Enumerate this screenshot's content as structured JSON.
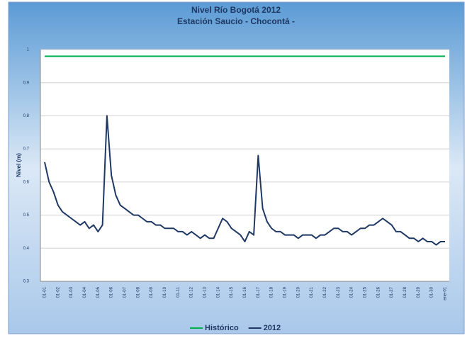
{
  "chart_data": {
    "type": "line",
    "title": "Nivel Río Bogotá  2012",
    "subtitle": "Estación Saucio - Chocontá -",
    "y_label": "Nivel (m)",
    "categories": [
      "01-01",
      null,
      null,
      "01-02",
      null,
      null,
      "01-03",
      null,
      null,
      "01-04",
      null,
      null,
      "01-05",
      null,
      null,
      "01-06",
      null,
      null,
      "01-07",
      null,
      null,
      "01-08",
      null,
      null,
      "01-09",
      null,
      null,
      "01-10",
      null,
      null,
      "01-11",
      null,
      null,
      "01-12",
      null,
      null,
      "01-13",
      null,
      null,
      "01-14",
      null,
      null,
      "01-15",
      null,
      null,
      "01-16",
      null,
      null,
      "01-17",
      null,
      null,
      "01-18",
      null,
      null,
      "01-19",
      null,
      null,
      "01-20",
      null,
      null,
      "01-21",
      null,
      null,
      "01-22",
      null,
      null,
      "01-23",
      null,
      null,
      "01-24",
      null,
      null,
      "01-25",
      null,
      null,
      "01-26",
      null,
      null,
      "01-27",
      null,
      null,
      "01-28",
      null,
      null,
      "01-29",
      null,
      null,
      "01-30",
      null,
      null,
      "ene-01"
    ],
    "series": [
      {
        "name": "Histórico",
        "color": "#00b050",
        "values": [
          0.98,
          0.98,
          0.98,
          0.98,
          0.98,
          0.98,
          0.98,
          0.98,
          0.98,
          0.98,
          0.98,
          0.98,
          0.98,
          0.98,
          0.98,
          0.98,
          0.98,
          0.98,
          0.98,
          0.98,
          0.98,
          0.98,
          0.98,
          0.98,
          0.98,
          0.98,
          0.98,
          0.98,
          0.98,
          0.98,
          0.98,
          0.98,
          0.98,
          0.98,
          0.98,
          0.98,
          0.98,
          0.98,
          0.98,
          0.98,
          0.98,
          0.98,
          0.98,
          0.98,
          0.98,
          0.98,
          0.98,
          0.98,
          0.98,
          0.98,
          0.98,
          0.98,
          0.98,
          0.98,
          0.98,
          0.98,
          0.98,
          0.98,
          0.98,
          0.98,
          0.98,
          0.98,
          0.98,
          0.98,
          0.98,
          0.98,
          0.98,
          0.98,
          0.98,
          0.98,
          0.98,
          0.98,
          0.98,
          0.98,
          0.98,
          0.98,
          0.98,
          0.98,
          0.98,
          0.98,
          0.98,
          0.98,
          0.98,
          0.98,
          0.98,
          0.98,
          0.98,
          0.98,
          0.98,
          0.98,
          0.98
        ]
      },
      {
        "name": "2012",
        "color": "#1f3864",
        "values": [
          0.66,
          0.6,
          0.57,
          0.53,
          0.51,
          0.5,
          0.49,
          0.48,
          0.47,
          0.48,
          0.46,
          0.47,
          0.45,
          0.47,
          0.8,
          0.62,
          0.56,
          0.53,
          0.52,
          0.51,
          0.5,
          0.5,
          0.49,
          0.48,
          0.48,
          0.47,
          0.47,
          0.46,
          0.46,
          0.46,
          0.45,
          0.45,
          0.44,
          0.45,
          0.44,
          0.43,
          0.44,
          0.43,
          0.43,
          0.46,
          0.49,
          0.48,
          0.46,
          0.45,
          0.44,
          0.42,
          0.45,
          0.44,
          0.68,
          0.52,
          0.48,
          0.46,
          0.45,
          0.45,
          0.44,
          0.44,
          0.44,
          0.43,
          0.44,
          0.44,
          0.44,
          0.43,
          0.44,
          0.44,
          0.45,
          0.46,
          0.46,
          0.45,
          0.45,
          0.44,
          0.45,
          0.46,
          0.46,
          0.47,
          0.47,
          0.48,
          0.49,
          0.48,
          0.47,
          0.45,
          0.45,
          0.44,
          0.43,
          0.43,
          0.42,
          0.43,
          0.42,
          0.42,
          0.41,
          0.42,
          0.42
        ]
      }
    ],
    "ylim": [
      0.3,
      1
    ],
    "yticks": [
      0.3,
      0.4,
      0.5,
      0.6,
      0.7,
      0.8,
      0.9,
      1
    ],
    "grid": true,
    "legend": "bottom"
  }
}
